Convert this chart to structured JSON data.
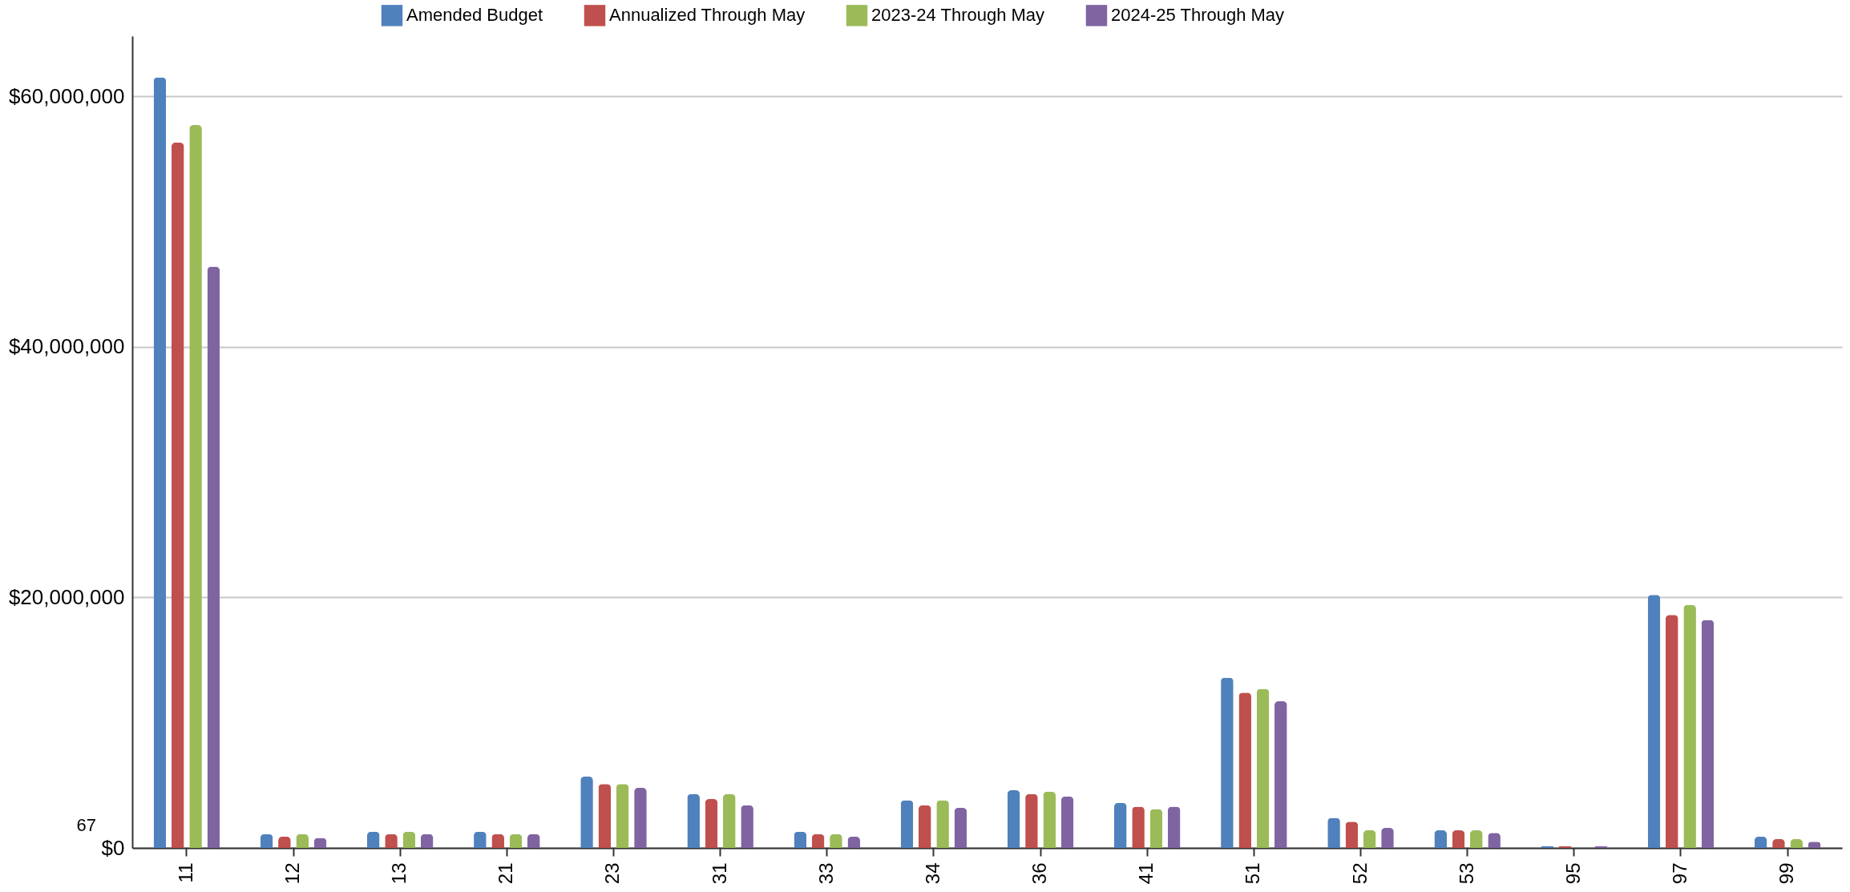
{
  "chart_data": {
    "type": "bar",
    "categories": [
      "11",
      "12",
      "13",
      "21",
      "23",
      "31",
      "33",
      "34",
      "36",
      "41",
      "51",
      "52",
      "53",
      "95",
      "97",
      "99"
    ],
    "series": [
      {
        "name": "Amended Budget",
        "color": "#4f81bd",
        "values": [
          61500000,
          1100000,
          1300000,
          1300000,
          5700000,
          4300000,
          1300000,
          3800000,
          4600000,
          3600000,
          13600000,
          2400000,
          1400000,
          150000,
          20200000,
          900000
        ]
      },
      {
        "name": "Annualized Through May",
        "color": "#c0504d",
        "values": [
          56300000,
          900000,
          1100000,
          1100000,
          5100000,
          3900000,
          1100000,
          3400000,
          4300000,
          3300000,
          12400000,
          2100000,
          1400000,
          150000,
          18600000,
          700000
        ]
      },
      {
        "name": "2023-24 Through May",
        "color": "#9bbb59",
        "values": [
          57700000,
          1100000,
          1300000,
          1100000,
          5100000,
          4300000,
          1100000,
          3800000,
          4500000,
          3100000,
          12700000,
          1400000,
          1400000,
          0,
          19400000,
          700000
        ]
      },
      {
        "name": "2024-25 Through May",
        "color": "#8064a2",
        "values": [
          46400000,
          800000,
          1100000,
          1100000,
          4800000,
          3400000,
          900000,
          3200000,
          4100000,
          3300000,
          11700000,
          1600000,
          1200000,
          150000,
          18200000,
          500000
        ]
      }
    ],
    "ylim": [
      0,
      64800000
    ],
    "yticks": [
      {
        "value": 0,
        "label": "$0"
      },
      {
        "value": 20000000,
        "label": "$20,000,000"
      },
      {
        "value": 40000000,
        "label": "$40,000,000"
      },
      {
        "value": 60000000,
        "label": "$60,000,000"
      }
    ],
    "grid": "y",
    "legend": "top",
    "annotations": [
      "67"
    ]
  }
}
